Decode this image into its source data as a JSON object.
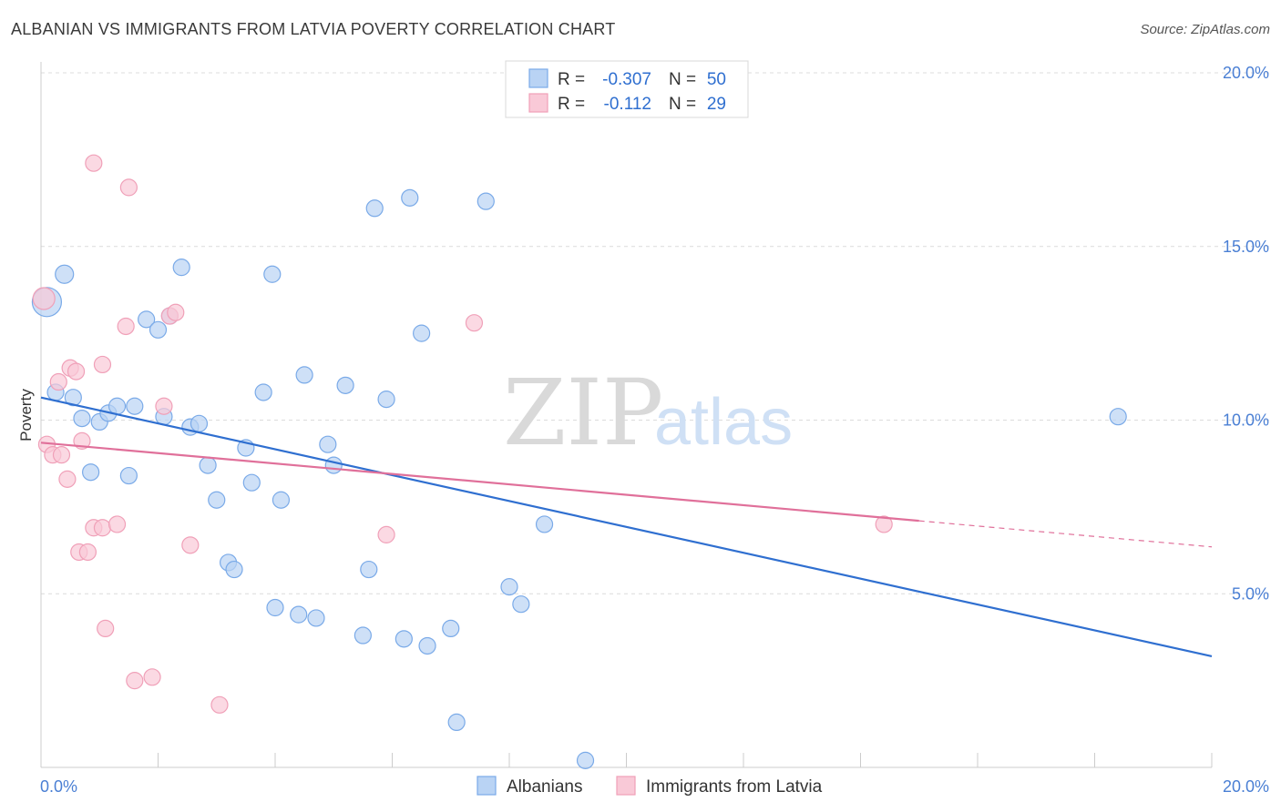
{
  "title": "ALBANIAN VS IMMIGRANTS FROM LATVIA POVERTY CORRELATION CHART",
  "source": "Source: ZipAtlas.com",
  "watermark": {
    "zip": "ZIP",
    "atlas": "atlas"
  },
  "legend": {
    "r_label": "R =",
    "n_label": "N =",
    "rows": [
      {
        "r": "-0.307",
        "n": "50",
        "color": "#7aaae8",
        "fill": "#b9d3f4"
      },
      {
        "r": "-0.112",
        "n": "29",
        "color": "#f0a0b8",
        "fill": "#f9c9d7"
      }
    ]
  },
  "bottom_legend": [
    {
      "label": "Albanians",
      "color": "#7aaae8",
      "fill": "#b9d3f4"
    },
    {
      "label": "Immigrants from Latvia",
      "color": "#f0a0b8",
      "fill": "#f9c9d7"
    }
  ],
  "chart_data": {
    "type": "scatter",
    "title": "ALBANIAN VS IMMIGRANTS FROM LATVIA POVERTY CORRELATION CHART",
    "xlabel": "",
    "ylabel": "Poverty",
    "xlim": [
      0,
      20
    ],
    "ylim": [
      0,
      20
    ],
    "x_tick_labels": [
      "0.0%",
      "20.0%"
    ],
    "y_ticks": [
      5,
      10,
      15,
      20
    ],
    "y_tick_labels": [
      "5.0%",
      "10.0%",
      "15.0%",
      "20.0%"
    ],
    "grid": "horizontal dashed",
    "legend_position": "top-center",
    "series": [
      {
        "name": "Albanians",
        "color": "#7aaae8",
        "fill": "#b9d3f4",
        "trend_color": "#2f6fd0",
        "trend": {
          "x0": 0,
          "y0": 10.65,
          "x1": 20,
          "y1": 3.2
        },
        "points": [
          [
            0.1,
            13.4,
            16
          ],
          [
            0.4,
            14.2,
            10
          ],
          [
            0.25,
            10.8,
            9
          ],
          [
            0.55,
            10.65,
            9
          ],
          [
            0.7,
            10.05,
            9
          ],
          [
            1.0,
            9.95,
            9
          ],
          [
            1.15,
            10.2,
            9
          ],
          [
            1.3,
            10.4,
            9
          ],
          [
            1.6,
            10.4,
            9
          ],
          [
            0.85,
            8.5,
            9
          ],
          [
            1.5,
            8.4,
            9
          ],
          [
            1.8,
            12.9,
            9
          ],
          [
            2.0,
            12.6,
            9
          ],
          [
            2.2,
            13.0,
            9
          ],
          [
            2.4,
            14.4,
            9
          ],
          [
            2.1,
            10.1,
            9
          ],
          [
            2.55,
            9.8,
            9
          ],
          [
            2.7,
            9.9,
            9
          ],
          [
            2.85,
            8.7,
            9
          ],
          [
            3.0,
            7.7,
            9
          ],
          [
            3.2,
            5.9,
            9
          ],
          [
            3.3,
            5.7,
            9
          ],
          [
            3.5,
            9.2,
            9
          ],
          [
            3.6,
            8.2,
            9
          ],
          [
            3.8,
            10.8,
            9
          ],
          [
            3.95,
            14.2,
            9
          ],
          [
            4.1,
            7.7,
            9
          ],
          [
            4.0,
            4.6,
            9
          ],
          [
            4.4,
            4.4,
            9
          ],
          [
            4.5,
            11.3,
            9
          ],
          [
            4.7,
            4.3,
            9
          ],
          [
            4.9,
            9.3,
            9
          ],
          [
            5.0,
            8.7,
            9
          ],
          [
            5.2,
            11.0,
            9
          ],
          [
            5.5,
            3.8,
            9
          ],
          [
            5.6,
            5.7,
            9
          ],
          [
            5.7,
            16.1,
            9
          ],
          [
            5.9,
            10.6,
            9
          ],
          [
            6.2,
            3.7,
            9
          ],
          [
            6.3,
            16.4,
            9
          ],
          [
            6.5,
            12.5,
            9
          ],
          [
            6.6,
            3.5,
            9
          ],
          [
            7.0,
            4.0,
            9
          ],
          [
            7.1,
            1.3,
            9
          ],
          [
            7.6,
            16.3,
            9
          ],
          [
            8.0,
            5.2,
            9
          ],
          [
            8.2,
            4.7,
            9
          ],
          [
            8.6,
            7.0,
            9
          ],
          [
            9.3,
            0.2,
            9
          ],
          [
            18.4,
            10.1,
            9
          ]
        ]
      },
      {
        "name": "Immigrants from Latvia",
        "color": "#f0a0b8",
        "fill": "#f9c9d7",
        "trend_color": "#e0709a",
        "trend": {
          "x0": 0,
          "y0": 9.35,
          "x1": 15,
          "y1": 7.1,
          "x_dash_end": 20,
          "y_dash_end": 6.35
        },
        "points": [
          [
            0.05,
            13.5,
            12
          ],
          [
            0.1,
            9.3,
            9
          ],
          [
            0.2,
            9.0,
            9
          ],
          [
            0.3,
            11.1,
            9
          ],
          [
            0.35,
            9.0,
            9
          ],
          [
            0.45,
            8.3,
            9
          ],
          [
            0.5,
            11.5,
            9
          ],
          [
            0.6,
            11.4,
            9
          ],
          [
            0.65,
            6.2,
            9
          ],
          [
            0.7,
            9.4,
            9
          ],
          [
            0.8,
            6.2,
            9
          ],
          [
            0.9,
            6.9,
            9
          ],
          [
            0.9,
            17.4,
            9
          ],
          [
            1.05,
            6.9,
            9
          ],
          [
            1.05,
            11.6,
            9
          ],
          [
            1.1,
            4.0,
            9
          ],
          [
            1.3,
            7.0,
            9
          ],
          [
            1.45,
            12.7,
            9
          ],
          [
            1.5,
            16.7,
            9
          ],
          [
            1.6,
            2.5,
            9
          ],
          [
            1.9,
            2.6,
            9
          ],
          [
            2.1,
            10.4,
            9
          ],
          [
            2.2,
            13.0,
            9
          ],
          [
            2.3,
            13.1,
            9
          ],
          [
            2.55,
            6.4,
            9
          ],
          [
            3.05,
            1.8,
            9
          ],
          [
            5.9,
            6.7,
            9
          ],
          [
            7.4,
            12.8,
            9
          ],
          [
            14.4,
            7.0,
            9
          ]
        ]
      }
    ]
  }
}
